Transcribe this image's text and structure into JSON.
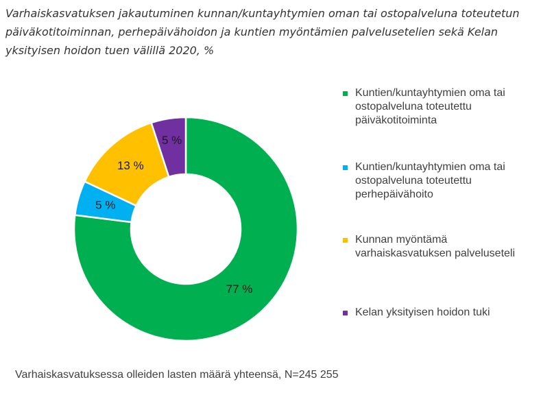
{
  "title": "Varhaiskasvatuksen jakautuminen kunnan/kuntayhtymien oman tai ostopalveluna toteutetun päiväkotitoiminnan, perhepäivähoidon ja kuntien myöntämien palvelusetelien sekä Kelan yksityisen hoidon tuen välillä 2020, %",
  "footnote": "Varhaiskasvatuksessa olleiden lasten määrä yhteensä, N=245 255",
  "chart_data": {
    "type": "pie",
    "donut": true,
    "categories": [
      "Kuntien/kuntayhtymien oma tai ostopalveluna toteutettu päiväkotitoiminta",
      "Kuntien/kuntayhtymien oma tai ostopalveluna toteutettu perhepäivähoito",
      "Kunnan myöntämä varhaiskasvatuksen palveluseteli",
      "Kelan yksityisen hoidon tuki"
    ],
    "values": [
      77,
      5,
      13,
      5
    ],
    "data_labels": [
      "77 %",
      "5 %",
      "13 %",
      "5 %"
    ],
    "colors": [
      "#00b050",
      "#00b0f0",
      "#ffc000",
      "#7030a0"
    ],
    "legend_position": "right"
  }
}
